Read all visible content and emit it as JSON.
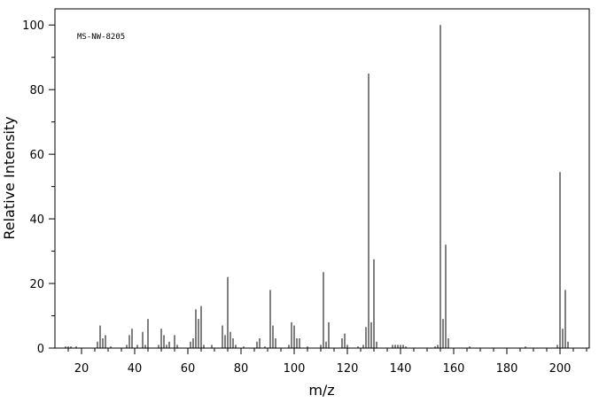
{
  "chart_data": {
    "type": "stem",
    "annotation": "MS-NW-8205",
    "xlabel": "m/z",
    "ylabel": "Relative Intensity",
    "color": "#000000",
    "xlim": [
      10,
      211
    ],
    "ylim": [
      0,
      105
    ],
    "xticks": [
      20,
      40,
      60,
      80,
      100,
      120,
      140,
      160,
      180,
      200
    ],
    "yticks": [
      0,
      20,
      40,
      60,
      80,
      100
    ],
    "xminorticks": [
      15,
      25,
      30,
      35,
      45,
      50,
      55,
      65,
      70,
      75,
      85,
      90,
      95,
      105,
      110,
      115,
      125,
      130,
      135,
      145,
      150,
      155,
      165,
      170,
      175,
      185,
      190,
      195,
      205,
      210
    ],
    "yminorticks": [
      10,
      30,
      50,
      70,
      90
    ],
    "x": [
      14,
      15,
      16,
      18,
      26,
      27,
      28,
      29,
      31,
      37,
      38,
      39,
      41,
      43,
      44,
      45,
      49,
      50,
      51,
      52,
      53,
      55,
      56,
      61,
      62,
      63,
      64,
      65,
      66,
      69,
      73,
      74,
      75,
      76,
      77,
      78,
      81,
      86,
      87,
      89,
      91,
      92,
      93,
      98,
      99,
      100,
      101,
      102,
      105,
      110,
      111,
      112,
      113,
      118,
      119,
      120,
      124,
      126,
      127,
      128,
      129,
      130,
      131,
      137,
      138,
      139,
      140,
      141,
      142,
      153,
      154,
      155,
      156,
      157,
      158,
      166,
      187,
      199,
      200,
      201,
      202,
      203
    ],
    "values": [
      0.5,
      0.5,
      0.5,
      0.5,
      2,
      7,
      3,
      4,
      0.5,
      1,
      4,
      6,
      1,
      5,
      1,
      9,
      1,
      6,
      4,
      1,
      2,
      4,
      1,
      2,
      3,
      12,
      9,
      13,
      1,
      1,
      7,
      4,
      22,
      5,
      3,
      1,
      0.5,
      2,
      3,
      0.5,
      18,
      7,
      3,
      1,
      8,
      7,
      3,
      3,
      0.5,
      1,
      23.5,
      2,
      8,
      3,
      4.5,
      1,
      0.5,
      1,
      6.5,
      85,
      8,
      27.5,
      2,
      1,
      1,
      1,
      1,
      1,
      0.5,
      0.5,
      1,
      100,
      9,
      32,
      3,
      0.5,
      0.5,
      1,
      54.5,
      6,
      18,
      2
    ]
  }
}
